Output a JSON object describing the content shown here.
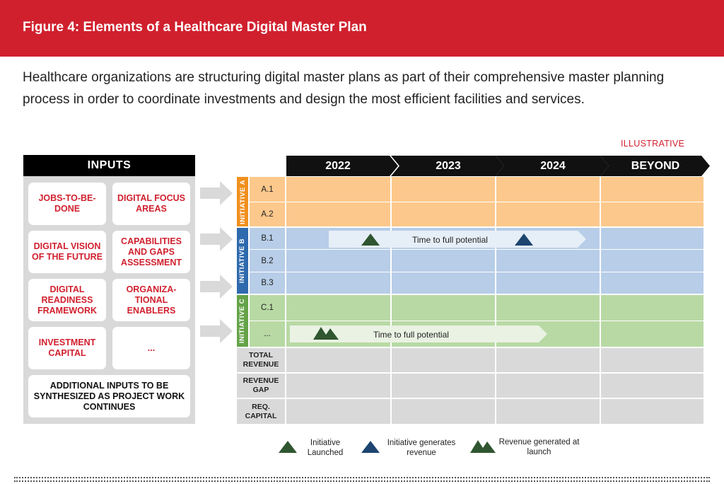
{
  "figure": {
    "title": "Figure 4: Elements of a Healthcare Digital Master Plan",
    "intro": "Healthcare organizations are structuring digital master plans as part of their comprehensive master planning process in order to coordinate investments and design the most efficient facilities and services.",
    "tag": "ILLUSTRATIVE"
  },
  "inputs": {
    "header": "INPUTS",
    "items": [
      "JOBS-TO-BE-DONE",
      "DIGITAL FOCUS AREAS",
      "DIGITAL VISION OF THE FUTURE",
      "CAPABILITIES AND GAPS ASSESSMENT",
      "DIGITAL READINESS FRAMEWORK",
      "ORGANIZA-TIONAL ENABLERS",
      "INVESTMENT CAPITAL",
      "..."
    ],
    "footer": "ADDITIONAL INPUTS TO BE SYNTHESIZED AS PROJECT WORK CONTINUES"
  },
  "timeline": {
    "years": [
      "2022",
      "2023",
      "2024",
      "BEYOND"
    ],
    "initiatives": [
      {
        "label": "INITIATIVE A",
        "color": "#f0901e",
        "fill": "#fcc88c",
        "rows": [
          "A.1",
          "A.2"
        ]
      },
      {
        "label": "INITIATIVE B",
        "color": "#2e6aad",
        "fill": "#b7cde8",
        "rows": [
          "B.1",
          "B.2",
          "B.3"
        ]
      },
      {
        "label": "INITIATIVE C",
        "color": "#65a348",
        "fill": "#b8d9a4",
        "rows": [
          "C.1",
          "..."
        ]
      }
    ],
    "metrics": [
      "TOTAL REVENUE",
      "REVENUE GAP",
      "REQ. CAPITAL"
    ],
    "bars": [
      {
        "text": "Time to full potential"
      },
      {
        "text": "Time to full potential"
      }
    ]
  },
  "legend": {
    "launched": "Initiative Launched",
    "generates": "Initiative generates revenue",
    "revenue_at_launch": "Revenue generated at launch"
  },
  "colors": {
    "brand_red": "#d0202e",
    "dark_green": "#2f5630",
    "navy": "#1d4570",
    "grey": "#d9d9d9"
  }
}
